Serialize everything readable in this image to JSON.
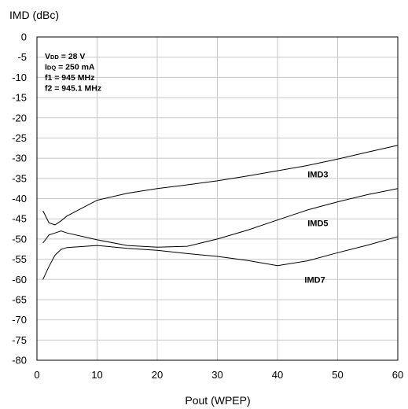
{
  "chart_data": {
    "type": "line",
    "ylabel": "IMD (dBc)",
    "xlabel": "Pout (WPEP)",
    "xlim": [
      0,
      60
    ],
    "ylim": [
      -80,
      0
    ],
    "xticks": [
      0,
      10,
      20,
      30,
      40,
      50,
      60
    ],
    "yticks": [
      0,
      -5,
      -10,
      -15,
      -20,
      -25,
      -30,
      -35,
      -40,
      -45,
      -50,
      -55,
      -60,
      -65,
      -70,
      -75,
      -80
    ],
    "grid": true,
    "conditions": [
      {
        "main": "V",
        "sub": "DD",
        "rest": " = 28 V"
      },
      {
        "main": "I",
        "sub": "DQ",
        "rest": " = 250 mA"
      },
      {
        "main": "f1 = 945 MHz",
        "sub": "",
        "rest": ""
      },
      {
        "main": "f2 = 945.1 MHz",
        "sub": "",
        "rest": ""
      }
    ],
    "series": [
      {
        "name": "IMD3",
        "x": [
          1,
          2,
          3,
          4,
          5,
          10,
          15,
          20,
          25,
          30,
          35,
          40,
          45,
          50,
          55,
          60
        ],
        "y": [
          -43,
          -46,
          -46.5,
          -45.5,
          -44.3,
          -40.4,
          -38.7,
          -37.5,
          -36.6,
          -35.6,
          -34.4,
          -33.1,
          -31.8,
          -30.2,
          -28.5,
          -26.8
        ],
        "label_at": [
          45,
          -34
        ]
      },
      {
        "name": "IMD5",
        "x": [
          1,
          2,
          3,
          4,
          5,
          10,
          15,
          20,
          25,
          30,
          35,
          40,
          45,
          50,
          55,
          60
        ],
        "y": [
          -51,
          -49,
          -48.5,
          -48,
          -48.5,
          -50.2,
          -51.6,
          -52,
          -51.8,
          -50,
          -47.8,
          -45.3,
          -42.8,
          -40.8,
          -39,
          -37.5
        ],
        "label_at": [
          45,
          -46
        ]
      },
      {
        "name": "IMD7",
        "x": [
          1,
          2,
          3,
          4,
          5,
          10,
          15,
          20,
          25,
          30,
          35,
          40,
          45,
          50,
          55,
          60
        ],
        "y": [
          -60,
          -56.8,
          -54,
          -52.6,
          -52.1,
          -51.6,
          -52.3,
          -52.8,
          -53.6,
          -54.3,
          -55.3,
          -56.6,
          -55.4,
          -53.4,
          -51.5,
          -49.4
        ],
        "label_at": [
          44.5,
          -60
        ]
      }
    ]
  }
}
